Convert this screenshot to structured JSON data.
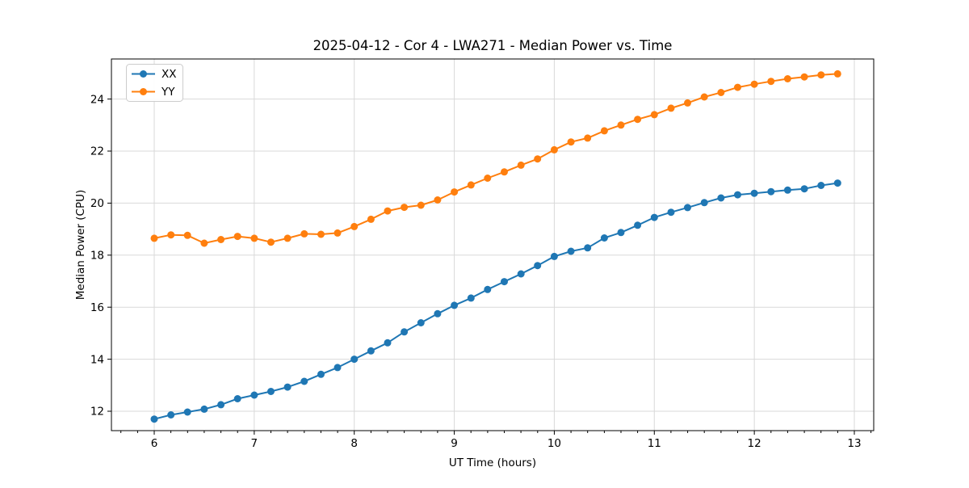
{
  "figure": {
    "title": "2025-04-12 - Cor 4 - LWA271 - Median Power vs. Time"
  },
  "chart_data": {
    "type": "line",
    "title": "2025-04-12 - Cor 4 - LWA271 - Median Power vs. Time",
    "xlabel": "UT Time (hours)",
    "ylabel": "Median Power (CPU)",
    "xlim": [
      5.57,
      13.19
    ],
    "ylim": [
      11.25,
      25.54
    ],
    "x_ticks": [
      6,
      7,
      8,
      9,
      10,
      11,
      12,
      13
    ],
    "y_ticks": [
      12,
      14,
      16,
      18,
      20,
      22,
      24
    ],
    "grid": true,
    "legend_position": "upper left",
    "marker": "circle",
    "x": [
      6.0,
      6.167,
      6.333,
      6.5,
      6.667,
      6.833,
      7.0,
      7.167,
      7.333,
      7.5,
      7.667,
      7.833,
      8.0,
      8.167,
      8.333,
      8.5,
      8.667,
      8.833,
      9.0,
      9.167,
      9.333,
      9.5,
      9.667,
      9.833,
      10.0,
      10.167,
      10.333,
      10.5,
      10.667,
      10.833,
      11.0,
      11.167,
      11.333,
      11.5,
      11.667,
      11.833,
      12.0,
      12.167,
      12.333,
      12.5,
      12.667,
      12.833
    ],
    "series": [
      {
        "name": "XX",
        "color": "#1f77b4",
        "values": [
          11.7,
          11.86,
          11.97,
          12.08,
          12.25,
          12.48,
          12.62,
          12.76,
          12.93,
          13.15,
          13.42,
          13.68,
          14.0,
          14.32,
          14.63,
          15.05,
          15.4,
          15.75,
          16.07,
          16.35,
          16.68,
          16.98,
          17.28,
          17.6,
          17.95,
          18.15,
          18.28,
          18.66,
          18.87,
          19.15,
          19.45,
          19.65,
          19.83,
          20.02,
          20.2,
          20.32,
          20.38,
          20.44,
          20.5,
          20.55,
          20.68,
          20.77
        ]
      },
      {
        "name": "YY",
        "color": "#ff7f0e",
        "values": [
          18.65,
          18.78,
          18.76,
          18.46,
          18.6,
          18.72,
          18.65,
          18.5,
          18.65,
          18.82,
          18.8,
          18.85,
          19.1,
          19.38,
          19.7,
          19.84,
          19.92,
          20.12,
          20.43,
          20.7,
          20.96,
          21.2,
          21.46,
          21.7,
          22.05,
          22.35,
          22.5,
          22.78,
          23.0,
          23.22,
          23.4,
          23.65,
          23.85,
          24.08,
          24.25,
          24.45,
          24.57,
          24.68,
          24.78,
          24.85,
          24.93,
          24.97
        ]
      }
    ],
    "grid_color": "#d9d9d9",
    "axis_color": "#000000"
  }
}
